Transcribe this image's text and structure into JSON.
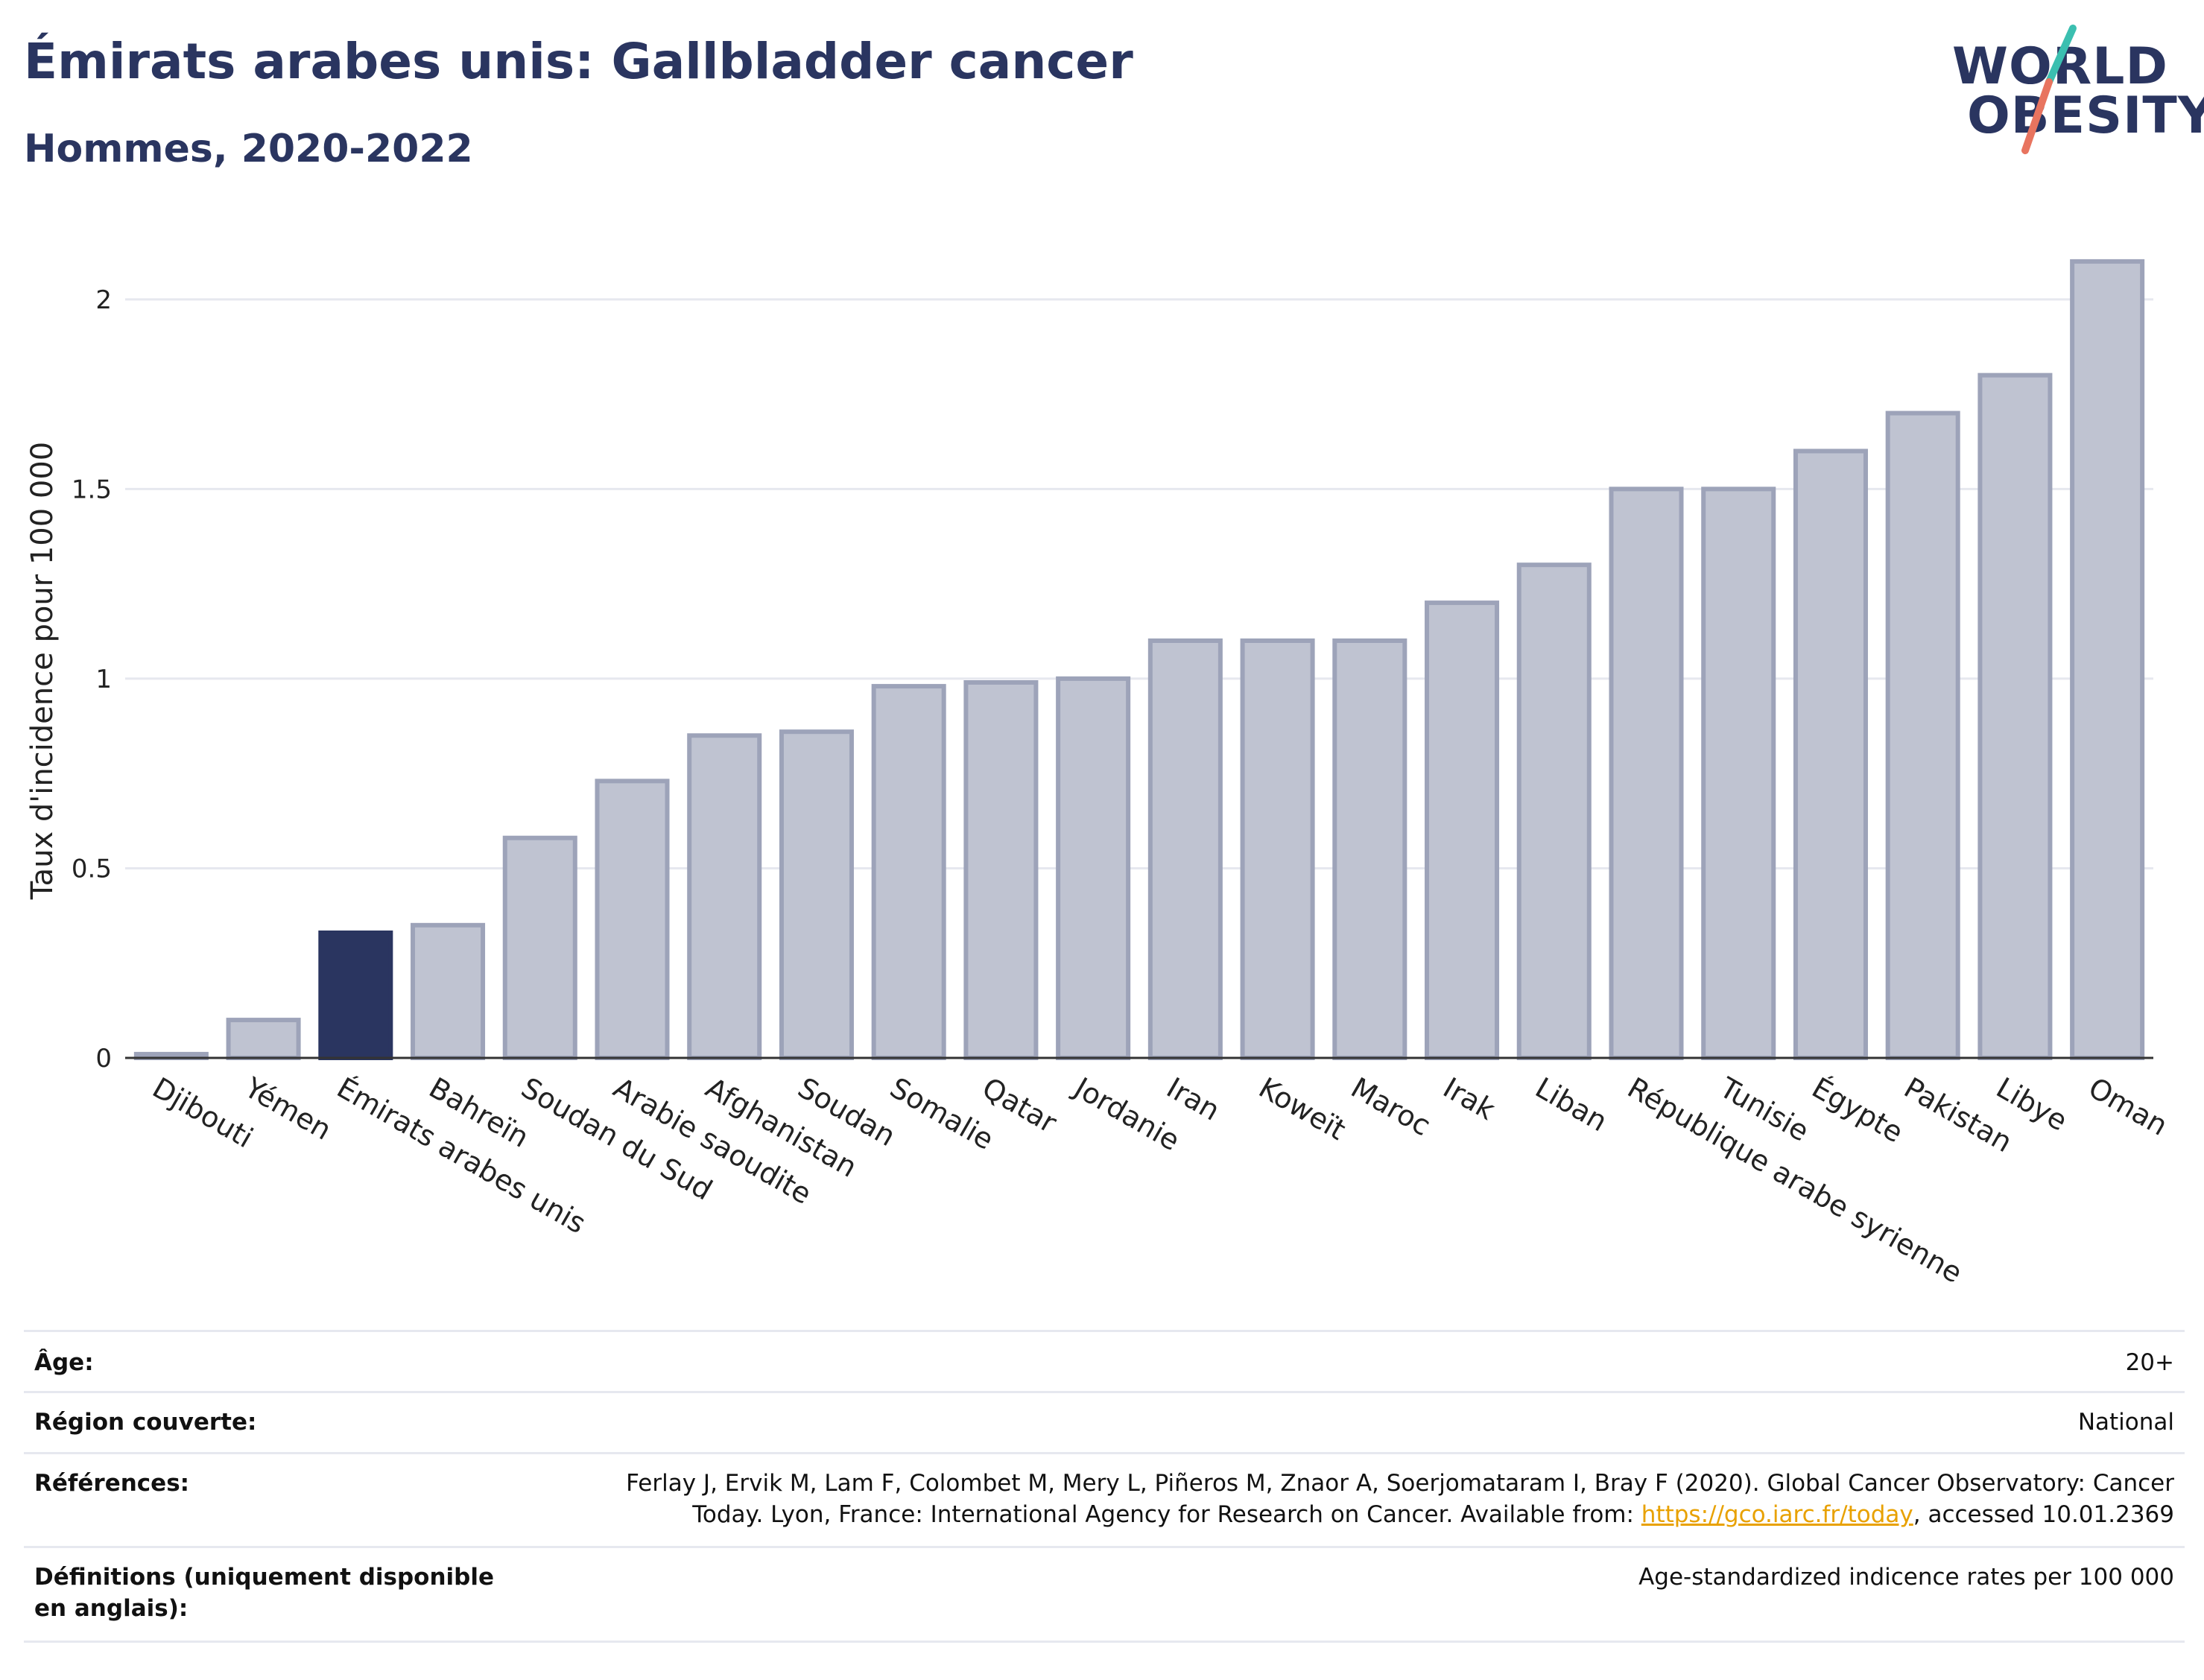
{
  "header": {
    "title": "Émirats arabes unis: Gallbladder cancer",
    "subtitle": "Hommes, 2020-2022"
  },
  "logo": {
    "line1": "WORLD",
    "line2": "OBESITY",
    "slash_colors": [
      "#3bbfb0",
      "#e8745f"
    ]
  },
  "colors": {
    "highlight": "#2a3560",
    "bar_fill": "#bfc3d1",
    "bar_stroke": "#9da3b9",
    "grid": "#e6e8ef",
    "axis": "#333333"
  },
  "chart_data": {
    "type": "bar",
    "ylabel": "Taux d'incidence pour 100 000",
    "ylim": [
      0,
      2.2
    ],
    "yticks": [
      0,
      0.5,
      1,
      1.5,
      2
    ],
    "ytick_labels": [
      "0",
      "0.5",
      "1",
      "1.5",
      "2"
    ],
    "grid": true,
    "highlight_index": 2,
    "categories": [
      "Djibouti",
      "Yémen",
      "Émirats arabes unis",
      "Bahreïn",
      "Soudan du Sud",
      "Arabie saoudite",
      "Afghanistan",
      "Soudan",
      "Somalie",
      "Qatar",
      "Jordanie",
      "Iran",
      "Koweït",
      "Maroc",
      "Irak",
      "Liban",
      "République arabe syrienne",
      "Tunisie",
      "Égypte",
      "Pakistan",
      "Libye",
      "Oman"
    ],
    "values": [
      0.01,
      0.1,
      0.33,
      0.35,
      0.58,
      0.73,
      0.85,
      0.86,
      0.98,
      0.99,
      1.0,
      1.1,
      1.1,
      1.1,
      1.2,
      1.3,
      1.5,
      1.5,
      1.6,
      1.7,
      1.8,
      2.1
    ]
  },
  "meta": {
    "rows": [
      {
        "label": "Âge:",
        "value": "20+"
      },
      {
        "label": "Région couverte:",
        "value": "National"
      },
      {
        "label": "Références:",
        "value_line1": "Ferlay J, Ervik M, Lam F, Colombet M, Mery L, Piñeros M, Znaor A, Soerjomataram I, Bray F (2020). Global Cancer Observatory: Cancer",
        "value_line2_pre": "Today. Lyon, France: International Agency for Research on Cancer. Available from: ",
        "link": "https://gco.iarc.fr/today",
        "value_line2_post": ", accessed 10.01.2369"
      },
      {
        "label": "Définitions (uniquement disponible en anglais):",
        "value": "Age-standardized indicence rates per 100 000"
      }
    ]
  }
}
